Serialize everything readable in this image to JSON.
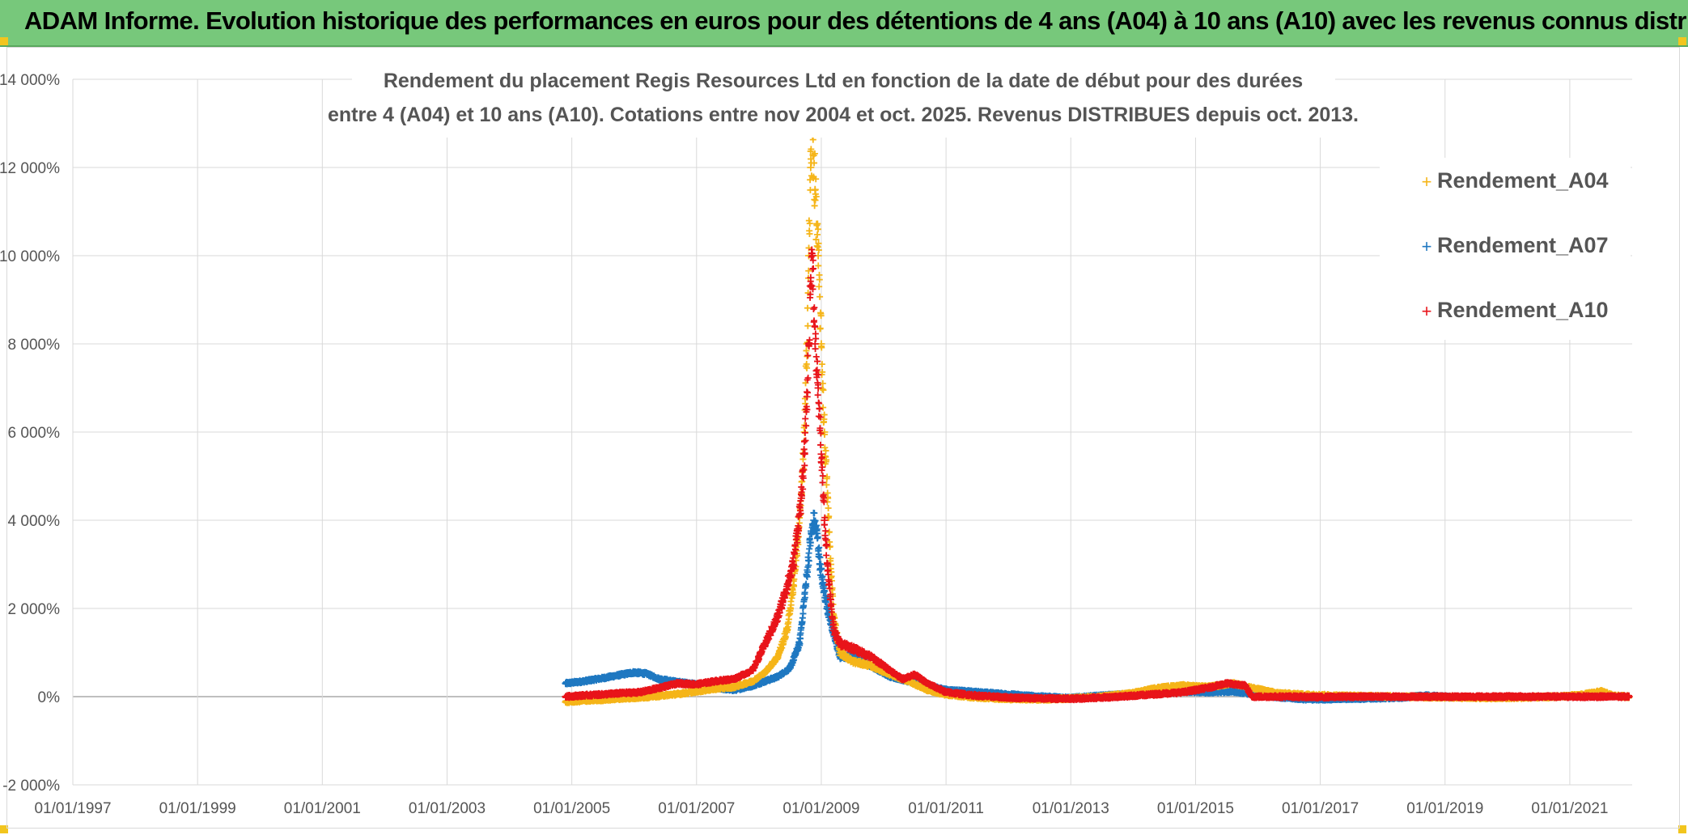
{
  "banner": {
    "title": "ADAM Informe. Evolution historique des performances en euros pour des détentions de 4 ans (A04) à 10 ans (A10) avec les revenus connus distribués"
  },
  "colors": {
    "banner_bg": "#77c87b",
    "A04": "#f5b519",
    "A07": "#1f78c1",
    "A10": "#e8141a",
    "grid": "#d9d9d9",
    "axis_text": "#555555"
  },
  "chart_data": {
    "type": "scatter",
    "title_line1": "Rendement du placement Regis Resources Ltd en fonction de la date de début pour des durées",
    "title_line2": "entre 4 (A04) et 10 ans (A10). Cotations entre nov 2004 et oct. 2025. Revenus DISTRIBUES depuis oct. 2013.",
    "xlabel": "",
    "ylabel": "",
    "x_range": [
      1997.0,
      2022.0
    ],
    "x_ticks": [
      {
        "value": 1997,
        "label": "01/01/1997"
      },
      {
        "value": 1999,
        "label": "01/01/1999"
      },
      {
        "value": 2001,
        "label": "01/01/2001"
      },
      {
        "value": 2003,
        "label": "01/01/2003"
      },
      {
        "value": 2005,
        "label": "01/01/2005"
      },
      {
        "value": 2007,
        "label": "01/01/2007"
      },
      {
        "value": 2009,
        "label": "01/01/2009"
      },
      {
        "value": 2011,
        "label": "01/01/2011"
      },
      {
        "value": 2013,
        "label": "01/01/2013"
      },
      {
        "value": 2015,
        "label": "01/01/2015"
      },
      {
        "value": 2017,
        "label": "01/01/2017"
      },
      {
        "value": 2019,
        "label": "01/01/2019"
      },
      {
        "value": 2021,
        "label": "01/01/2021"
      }
    ],
    "y_range": [
      -2000,
      14000
    ],
    "y_ticks": [
      {
        "value": 14000,
        "label": "14 000%"
      },
      {
        "value": 12000,
        "label": "12 000%"
      },
      {
        "value": 10000,
        "label": "10 000%"
      },
      {
        "value": 8000,
        "label": "8 000%"
      },
      {
        "value": 6000,
        "label": "6 000%"
      },
      {
        "value": 4000,
        "label": "4 000%"
      },
      {
        "value": 2000,
        "label": "2 000%"
      },
      {
        "value": 0,
        "label": "0%"
      },
      {
        "value": -2000,
        "label": "-2 000%"
      }
    ],
    "legend_position": "top-right",
    "series": [
      {
        "name": "Rendement_A04",
        "color": "#f5b519",
        "marker": "+",
        "points": [
          [
            2004.9,
            -120
          ],
          [
            2005.2,
            -90
          ],
          [
            2005.5,
            -70
          ],
          [
            2005.8,
            -40
          ],
          [
            2006.1,
            -20
          ],
          [
            2006.4,
            20
          ],
          [
            2006.7,
            60
          ],
          [
            2007.0,
            120
          ],
          [
            2007.3,
            180
          ],
          [
            2007.6,
            220
          ],
          [
            2007.9,
            350
          ],
          [
            2008.1,
            550
          ],
          [
            2008.3,
            900
          ],
          [
            2008.45,
            1500
          ],
          [
            2008.55,
            2500
          ],
          [
            2008.62,
            3500
          ],
          [
            2008.68,
            4500
          ],
          [
            2008.73,
            6000
          ],
          [
            2008.77,
            8000
          ],
          [
            2008.8,
            10000
          ],
          [
            2008.83,
            12000
          ],
          [
            2008.86,
            12700
          ],
          [
            2008.9,
            11500
          ],
          [
            2008.95,
            10000
          ],
          [
            2009.0,
            8000
          ],
          [
            2009.05,
            6000
          ],
          [
            2009.1,
            4500
          ],
          [
            2009.15,
            3000
          ],
          [
            2009.2,
            1800
          ],
          [
            2009.3,
            1000
          ],
          [
            2009.5,
            800
          ],
          [
            2009.8,
            700
          ],
          [
            2010.1,
            500
          ],
          [
            2010.4,
            350
          ],
          [
            2010.7,
            150
          ],
          [
            2011.0,
            50
          ],
          [
            2011.5,
            -20
          ],
          [
            2012.0,
            -50
          ],
          [
            2012.5,
            -60
          ],
          [
            2013.0,
            -40
          ],
          [
            2013.5,
            0
          ],
          [
            2014.0,
            80
          ],
          [
            2014.4,
            200
          ],
          [
            2014.8,
            250
          ],
          [
            2015.2,
            220
          ],
          [
            2015.6,
            300
          ],
          [
            2015.9,
            200
          ],
          [
            2016.3,
            80
          ],
          [
            2016.8,
            40
          ],
          [
            2017.3,
            20
          ],
          [
            2017.8,
            10
          ],
          [
            2018.3,
            0
          ],
          [
            2018.8,
            -10
          ],
          [
            2019.3,
            -20
          ],
          [
            2019.8,
            -30
          ],
          [
            2020.3,
            -20
          ],
          [
            2020.8,
            0
          ],
          [
            2021.2,
            40
          ],
          [
            2021.5,
            120
          ],
          [
            2021.7,
            20
          ],
          [
            2021.95,
            0
          ]
        ]
      },
      {
        "name": "Rendement_A07",
        "color": "#1f78c1",
        "marker": "+",
        "points": [
          [
            2004.9,
            300
          ],
          [
            2005.2,
            350
          ],
          [
            2005.5,
            420
          ],
          [
            2005.8,
            500
          ],
          [
            2006.0,
            550
          ],
          [
            2006.2,
            520
          ],
          [
            2006.4,
            400
          ],
          [
            2006.7,
            330
          ],
          [
            2007.0,
            280
          ],
          [
            2007.3,
            200
          ],
          [
            2007.6,
            150
          ],
          [
            2007.9,
            250
          ],
          [
            2008.1,
            350
          ],
          [
            2008.3,
            450
          ],
          [
            2008.5,
            650
          ],
          [
            2008.65,
            1200
          ],
          [
            2008.75,
            2500
          ],
          [
            2008.82,
            3500
          ],
          [
            2008.88,
            4000
          ],
          [
            2008.93,
            3700
          ],
          [
            2008.98,
            3000
          ],
          [
            2009.03,
            2500
          ],
          [
            2009.1,
            2000
          ],
          [
            2009.2,
            1400
          ],
          [
            2009.3,
            900
          ],
          [
            2009.5,
            900
          ],
          [
            2009.8,
            700
          ],
          [
            2010.1,
            450
          ],
          [
            2010.4,
            350
          ],
          [
            2010.7,
            250
          ],
          [
            2011.0,
            150
          ],
          [
            2011.5,
            100
          ],
          [
            2012.0,
            50
          ],
          [
            2012.5,
            0
          ],
          [
            2013.0,
            -30
          ],
          [
            2013.5,
            20
          ],
          [
            2014.0,
            60
          ],
          [
            2014.4,
            80
          ],
          [
            2014.8,
            120
          ],
          [
            2015.2,
            100
          ],
          [
            2015.6,
            120
          ],
          [
            2016.0,
            50
          ],
          [
            2016.4,
            -20
          ],
          [
            2016.8,
            -60
          ],
          [
            2017.3,
            -50
          ],
          [
            2017.8,
            -40
          ],
          [
            2018.3,
            -20
          ],
          [
            2018.7,
            20
          ],
          [
            2019.1,
            -10
          ]
        ]
      },
      {
        "name": "Rendement_A10",
        "color": "#e8141a",
        "marker": "+",
        "points": [
          [
            2004.9,
            0
          ],
          [
            2005.2,
            30
          ],
          [
            2005.5,
            50
          ],
          [
            2005.8,
            80
          ],
          [
            2006.1,
            100
          ],
          [
            2006.4,
            200
          ],
          [
            2006.7,
            300
          ],
          [
            2007.0,
            280
          ],
          [
            2007.3,
            350
          ],
          [
            2007.6,
            400
          ],
          [
            2007.9,
            600
          ],
          [
            2008.1,
            1200
          ],
          [
            2008.3,
            1800
          ],
          [
            2008.45,
            2500
          ],
          [
            2008.55,
            3000
          ],
          [
            2008.62,
            3800
          ],
          [
            2008.68,
            4500
          ],
          [
            2008.73,
            5500
          ],
          [
            2008.77,
            6800
          ],
          [
            2008.8,
            8000
          ],
          [
            2008.83,
            9500
          ],
          [
            2008.86,
            10000
          ],
          [
            2008.9,
            8000
          ],
          [
            2008.95,
            7000
          ],
          [
            2009.0,
            5500
          ],
          [
            2009.05,
            4000
          ],
          [
            2009.1,
            3000
          ],
          [
            2009.15,
            2200
          ],
          [
            2009.2,
            1500
          ],
          [
            2009.3,
            1200
          ],
          [
            2009.5,
            1100
          ],
          [
            2009.8,
            900
          ],
          [
            2010.1,
            600
          ],
          [
            2010.3,
            400
          ],
          [
            2010.5,
            500
          ],
          [
            2010.7,
            300
          ],
          [
            2011.0,
            100
          ],
          [
            2011.5,
            20
          ],
          [
            2012.0,
            -20
          ],
          [
            2012.5,
            -40
          ],
          [
            2013.0,
            -50
          ],
          [
            2013.5,
            -20
          ],
          [
            2014.0,
            20
          ],
          [
            2014.4,
            60
          ],
          [
            2014.8,
            100
          ],
          [
            2015.2,
            200
          ],
          [
            2015.5,
            300
          ],
          [
            2015.8,
            250
          ],
          [
            2015.9,
            0
          ],
          [
            2016.5,
            0
          ],
          [
            2017.0,
            -10
          ],
          [
            2017.5,
            0
          ],
          [
            2018.0,
            0
          ],
          [
            2018.5,
            0
          ],
          [
            2019.0,
            0
          ],
          [
            2019.5,
            0
          ],
          [
            2020.0,
            0
          ],
          [
            2020.5,
            0
          ],
          [
            2021.0,
            0
          ],
          [
            2021.5,
            0
          ],
          [
            2021.95,
            0
          ]
        ]
      }
    ]
  }
}
